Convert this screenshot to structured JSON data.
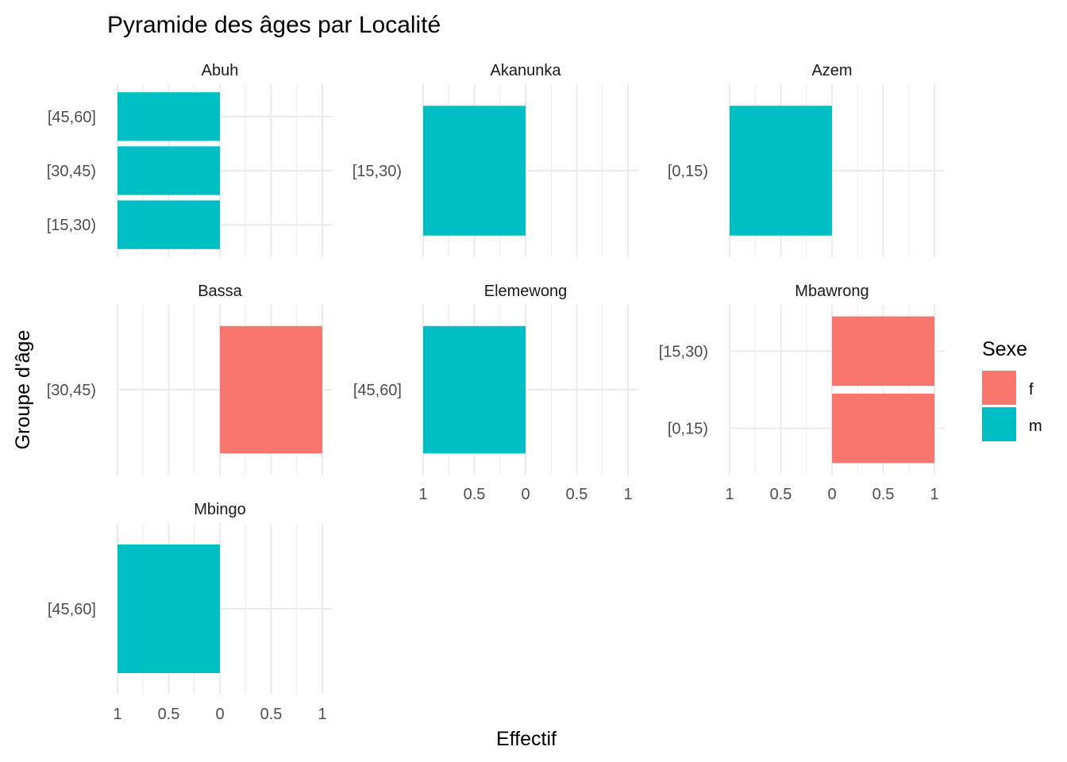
{
  "chart_data": {
    "type": "bar",
    "title": "Pyramide des âges par Localité",
    "xlabel": "Effectif",
    "ylabel": "Groupe d'âge",
    "xlim": [
      -1,
      1
    ],
    "x_ticks": [
      -1,
      -0.5,
      0,
      0.5,
      1
    ],
    "x_tick_labels": [
      "1",
      "0.5",
      "0",
      "0.5",
      "1"
    ],
    "grid": true,
    "legend": {
      "title": "Sexe",
      "position": "right",
      "entries": [
        {
          "key": "f",
          "label": "f",
          "color": "#F8766D"
        },
        {
          "key": "m",
          "label": "m",
          "color": "#00BFC4"
        }
      ]
    },
    "facets": [
      {
        "name": "Abuh",
        "categories": [
          "[15,30)",
          "[30,45)",
          "[45,60]"
        ],
        "bars": [
          {
            "category": "[15,30)",
            "sex": "m",
            "value": -1
          },
          {
            "category": "[30,45)",
            "sex": "m",
            "value": -1
          },
          {
            "category": "[45,60]",
            "sex": "m",
            "value": -1
          }
        ]
      },
      {
        "name": "Akanunka",
        "categories": [
          "[15,30)"
        ],
        "bars": [
          {
            "category": "[15,30)",
            "sex": "m",
            "value": -1
          }
        ]
      },
      {
        "name": "Azem",
        "categories": [
          "[0,15)"
        ],
        "bars": [
          {
            "category": "[0,15)",
            "sex": "m",
            "value": -1
          }
        ]
      },
      {
        "name": "Bassa",
        "categories": [
          "[30,45)"
        ],
        "bars": [
          {
            "category": "[30,45)",
            "sex": "f",
            "value": 1
          }
        ]
      },
      {
        "name": "Elemewong",
        "categories": [
          "[45,60]"
        ],
        "bars": [
          {
            "category": "[45,60]",
            "sex": "m",
            "value": -1
          }
        ]
      },
      {
        "name": "Mbawrong",
        "categories": [
          "[0,15)",
          "[15,30)"
        ],
        "bars": [
          {
            "category": "[0,15)",
            "sex": "f",
            "value": 1
          },
          {
            "category": "[15,30)",
            "sex": "f",
            "value": 1
          }
        ]
      },
      {
        "name": "Mbingo",
        "categories": [
          "[45,60]"
        ],
        "bars": [
          {
            "category": "[45,60]",
            "sex": "m",
            "value": -1
          }
        ]
      }
    ]
  }
}
